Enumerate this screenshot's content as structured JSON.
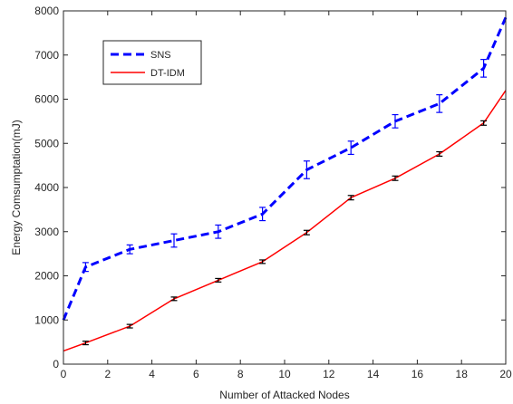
{
  "chart_data": {
    "type": "line",
    "title": "",
    "xlabel": "Number of Attacked Nodes",
    "ylabel": "Energy Comsumptation(mJ)",
    "xlim": [
      0,
      20
    ],
    "ylim": [
      0,
      8000
    ],
    "xticks": [
      0,
      2,
      4,
      6,
      8,
      10,
      12,
      14,
      16,
      18,
      20
    ],
    "yticks": [
      0,
      1000,
      2000,
      3000,
      4000,
      5000,
      6000,
      7000,
      8000
    ],
    "xtick_labels": [
      "0",
      "2",
      "4",
      "6",
      "8",
      "10",
      "12",
      "14",
      "16",
      "18",
      "20"
    ],
    "ytick_labels": [
      "0",
      "1000",
      "2000",
      "3000",
      "4000",
      "5000",
      "6000",
      "7000",
      "8000"
    ],
    "grid": false,
    "legend_position": "top-left",
    "series": [
      {
        "name": "SNS",
        "color": "#0000ff",
        "style": "dashed",
        "x": [
          0,
          1,
          3,
          5,
          7,
          9,
          11,
          13,
          15,
          17,
          19,
          20
        ],
        "y": [
          1000,
          2200,
          2600,
          2800,
          3000,
          3400,
          4400,
          4900,
          5500,
          5900,
          6700,
          7850
        ],
        "err": [
          0,
          100,
          100,
          150,
          150,
          150,
          200,
          150,
          150,
          200,
          200,
          0
        ]
      },
      {
        "name": "DT-IDM",
        "color": "#ff0000",
        "style": "solid",
        "x": [
          0,
          1,
          3,
          5,
          7,
          9,
          11,
          13,
          15,
          17,
          19,
          20
        ],
        "y": [
          300,
          480,
          860,
          1480,
          1900,
          2320,
          2980,
          3770,
          4210,
          4760,
          5460,
          6200
        ],
        "err": [
          0,
          40,
          40,
          40,
          40,
          40,
          50,
          50,
          50,
          50,
          50,
          0
        ]
      }
    ]
  }
}
